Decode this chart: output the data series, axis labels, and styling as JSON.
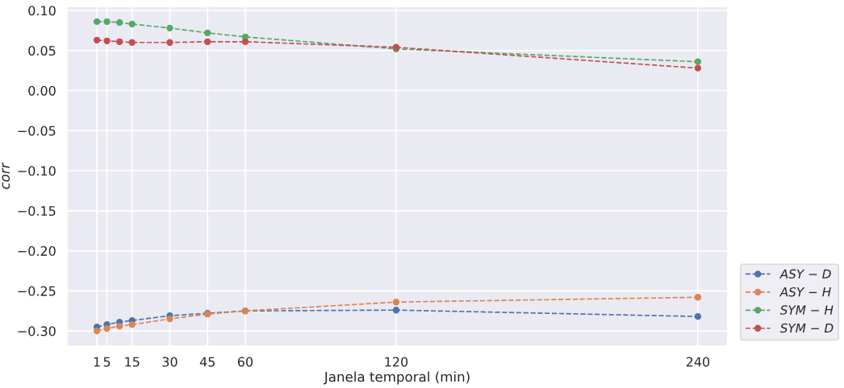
{
  "chart_data": {
    "type": "line",
    "xlabel": "Janela temporal (min)",
    "ylabel": "corr",
    "x": [
      1,
      5,
      10,
      15,
      30,
      45,
      60,
      120,
      240
    ],
    "series": [
      {
        "name": "ASY − D",
        "color": "#4c72b0",
        "values": [
          -0.295,
          -0.292,
          -0.289,
          -0.287,
          -0.281,
          -0.278,
          -0.275,
          -0.274,
          -0.282
        ]
      },
      {
        "name": "ASY − H",
        "color": "#dd8452",
        "values": [
          -0.3,
          -0.297,
          -0.294,
          -0.292,
          -0.285,
          -0.279,
          -0.275,
          -0.264,
          -0.258
        ]
      },
      {
        "name": "SYM − H",
        "color": "#55a868",
        "values": [
          0.086,
          0.086,
          0.085,
          0.083,
          0.078,
          0.072,
          0.067,
          0.052,
          0.036
        ]
      },
      {
        "name": "SYM − D",
        "color": "#c44e52",
        "values": [
          0.063,
          0.062,
          0.061,
          0.06,
          0.06,
          0.061,
          0.061,
          0.054,
          0.028
        ]
      }
    ],
    "xlim": [
      -10.9,
      251.9
    ],
    "xticks": [
      1,
      5,
      15,
      30,
      45,
      60,
      120,
      240
    ],
    "ylim": [
      -0.319,
      0.105
    ],
    "yticks": [
      {
        "value": -0.3,
        "label": "−0.30"
      },
      {
        "value": -0.25,
        "label": "−0.25"
      },
      {
        "value": -0.2,
        "label": "−0.20"
      },
      {
        "value": -0.15,
        "label": "−0.15"
      },
      {
        "value": -0.1,
        "label": "−0.10"
      },
      {
        "value": -0.05,
        "label": "−0.05"
      },
      {
        "value": 0,
        "label": "0.00"
      },
      {
        "value": 0.05,
        "label": "0.05"
      },
      {
        "value": 0.1,
        "label": "0.10"
      }
    ],
    "grid": true,
    "legend": "bottom right",
    "marker": "circle",
    "line_style": "dashed"
  }
}
